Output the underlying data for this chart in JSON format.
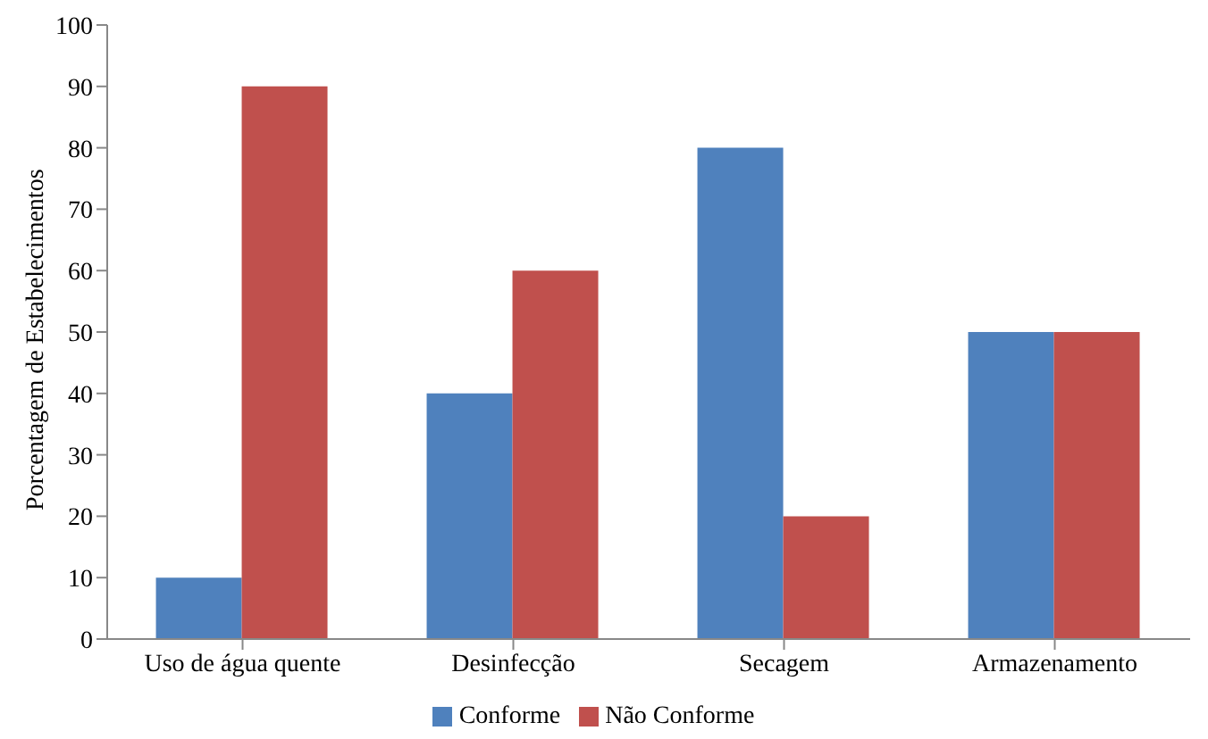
{
  "chart_data": {
    "type": "bar",
    "ylabel": "Porcentagem de Estabelecimentos",
    "categories": [
      "Uso de água quente",
      "Desinfecção",
      "Secagem",
      "Armazenamento"
    ],
    "series": [
      {
        "name": "Conforme",
        "color": "#4f81bd",
        "values": [
          10,
          40,
          80,
          50
        ]
      },
      {
        "name": "Não Conforme",
        "color": "#c0504d",
        "values": [
          90,
          60,
          20,
          50
        ]
      }
    ],
    "ylim": [
      0,
      100
    ],
    "yticks": [
      0,
      10,
      20,
      30,
      40,
      50,
      60,
      70,
      80,
      90,
      100
    ],
    "grid": false,
    "legend": "bottom"
  }
}
